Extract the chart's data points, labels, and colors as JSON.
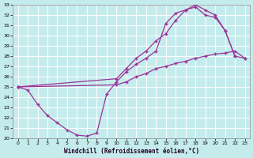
{
  "xlabel": "Windchill (Refroidissement éolien,°C)",
  "xlim": [
    -0.5,
    23.5
  ],
  "ylim": [
    20,
    33
  ],
  "xticks": [
    0,
    1,
    2,
    3,
    4,
    5,
    6,
    7,
    8,
    9,
    10,
    11,
    12,
    13,
    14,
    15,
    16,
    17,
    18,
    19,
    20,
    21,
    22,
    23
  ],
  "yticks": [
    20,
    21,
    22,
    23,
    24,
    25,
    26,
    27,
    28,
    29,
    30,
    31,
    32,
    33
  ],
  "bg_color": "#c5eced",
  "grid_color": "#aadddd",
  "line_color": "#993399",
  "line1_x": [
    0,
    1,
    2,
    3,
    4,
    5,
    6,
    7,
    8,
    9,
    10,
    11,
    12,
    13,
    14,
    15,
    16,
    17,
    18,
    19,
    20,
    21,
    22
  ],
  "line1_y": [
    25.0,
    24.7,
    23.3,
    22.2,
    21.5,
    20.8,
    20.3,
    20.2,
    20.5,
    24.3,
    25.5,
    26.5,
    27.2,
    27.8,
    28.5,
    31.2,
    32.2,
    32.5,
    33.0,
    32.5,
    32.0,
    30.5,
    28.0
  ],
  "line2_x": [
    0,
    10,
    11,
    12,
    13,
    14,
    15,
    16,
    17,
    18,
    19,
    20,
    21,
    22,
    23
  ],
  "line2_y": [
    25.0,
    25.8,
    26.8,
    27.8,
    28.5,
    29.5,
    30.2,
    31.5,
    32.5,
    32.8,
    32.0,
    31.8,
    30.5,
    28.0,
    27.8
  ],
  "line3_x": [
    0,
    10,
    11,
    12,
    13,
    14,
    15,
    16,
    17,
    18,
    19,
    20,
    21,
    22,
    23
  ],
  "line3_y": [
    25.0,
    25.2,
    25.5,
    26.0,
    26.3,
    26.8,
    27.0,
    27.3,
    27.5,
    27.8,
    28.0,
    28.2,
    28.3,
    28.5,
    27.8
  ]
}
